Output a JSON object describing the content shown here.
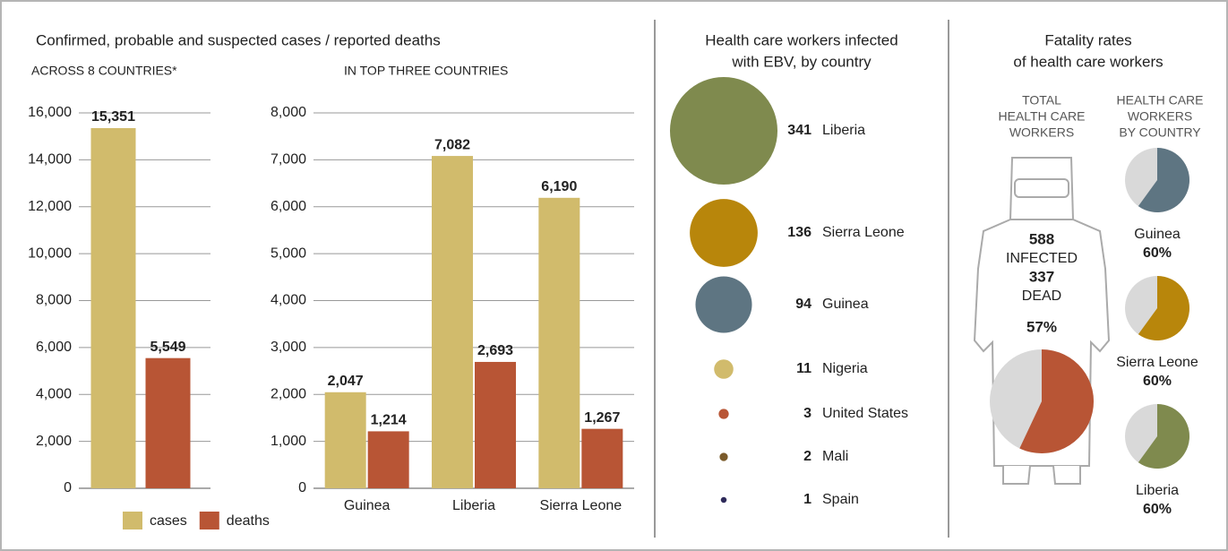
{
  "chart_data": [
    {
      "type": "bar",
      "title": "Confirmed, probable and suspected cases / reported deaths",
      "subtitle": "ACROSS 8 COUNTRIES*",
      "categories": [
        null
      ],
      "series": [
        {
          "name": "cases",
          "color": "#d1bb6c",
          "values": [
            15351
          ],
          "value_labels": [
            "15,351"
          ]
        },
        {
          "name": "deaths",
          "color": "#b85535",
          "values": [
            5549
          ],
          "value_labels": [
            "5,549"
          ]
        }
      ],
      "ylim": [
        0,
        16000
      ],
      "yticks": [
        0,
        {
          "value": 2000,
          "label": "2,000"
        },
        {
          "value": 4000,
          "label": "4,000"
        },
        {
          "value": 6000,
          "label": "6,000"
        },
        {
          "value": 8000,
          "label": "8,000"
        },
        {
          "value": 10000,
          "label": "10,000"
        },
        {
          "value": 12000,
          "label": "12,000"
        },
        {
          "value": 14000,
          "label": "14,000"
        },
        {
          "value": 16000,
          "label": "16,000"
        }
      ],
      "grid": true,
      "legend": "bottom"
    },
    {
      "type": "bar",
      "subtitle": "IN TOP THREE COUNTRIES",
      "categories": [
        "Guinea",
        "Liberia",
        "Sierra Leone"
      ],
      "series": [
        {
          "color": "#d1bb6c",
          "values": [
            2047,
            7082,
            6190
          ],
          "value_labels": [
            "2,047",
            "7,082",
            "6,190"
          ]
        },
        {
          "color": "#b85535",
          "values": [
            1214,
            2693,
            1267
          ],
          "value_labels": [
            "1,214",
            "2,693",
            "1,267"
          ]
        }
      ],
      "ylim": [
        0,
        8000
      ],
      "yticks": [
        0,
        {
          "value": 1000,
          "label": "1,000"
        },
        {
          "value": 2000,
          "label": "2,000"
        },
        {
          "value": 3000,
          "label": "3,000"
        },
        {
          "value": 4000,
          "label": "4,000"
        },
        {
          "value": 5000,
          "label": "5,000"
        },
        {
          "value": 6000,
          "label": "6,000"
        },
        {
          "value": 7000,
          "label": "7,000"
        },
        {
          "value": 8000,
          "label": "8,000"
        }
      ],
      "grid": true
    },
    {
      "type": "bubble",
      "title": [
        "Health care workers infected",
        "with EBV, by country"
      ],
      "categories": [
        "Liberia",
        "Sierra Leone",
        "Guinea",
        "Nigeria",
        "United States",
        "Mali",
        "Spain"
      ],
      "values": [
        341,
        136,
        94,
        11,
        3,
        2,
        1
      ],
      "colors": [
        "#7f8a4e",
        "#b8860b",
        "#5e7582",
        "#d1bb6c",
        "#b85535",
        "#7a5a2a",
        "#2e2a5a"
      ]
    },
    {
      "type": "pie",
      "title": [
        "Fatality rates",
        "of health care workers"
      ],
      "total": {
        "label": [
          "TOTAL",
          "HEALTH CARE",
          "WORKERS"
        ],
        "infected": 588,
        "infected_label": "INFECTED",
        "dead": 337,
        "dead_label": "DEAD",
        "value": 57,
        "value_label": "57%",
        "color": "#b85535"
      },
      "subtitle": [
        "HEALTH CARE",
        "WORKERS",
        "BY COUNTRY"
      ],
      "categories": [
        "Guinea",
        "Sierra Leone",
        "Liberia"
      ],
      "values": [
        60,
        60,
        60
      ],
      "value_labels": [
        "60%",
        "60%",
        "60%"
      ],
      "colors": [
        "#5e7582",
        "#b8860b",
        "#7f8a4e"
      ]
    }
  ]
}
